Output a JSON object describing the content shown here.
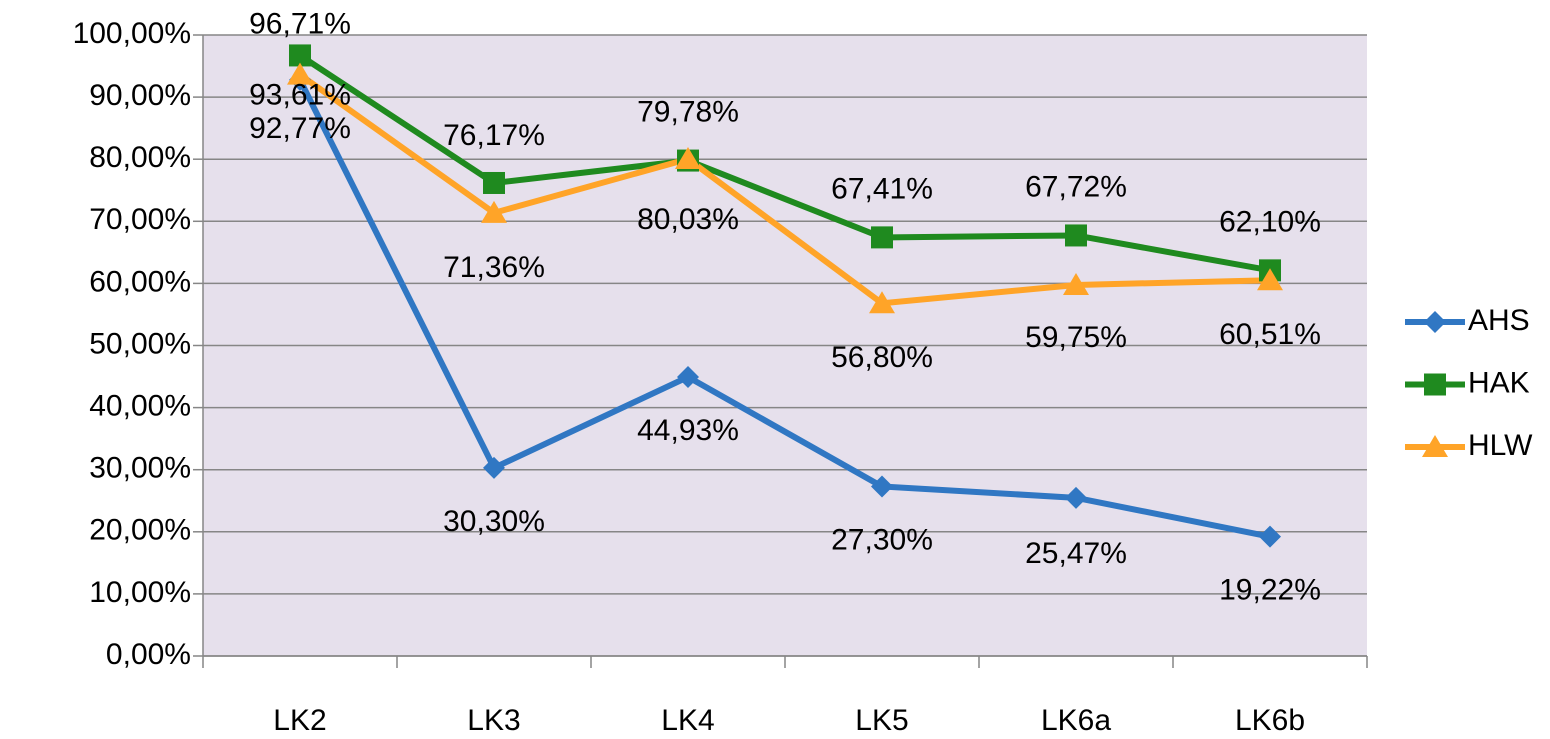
{
  "chart_data": {
    "type": "line",
    "categories": [
      "LK2",
      "LK3",
      "LK4",
      "LK5",
      "LK6a",
      "LK6b"
    ],
    "series": [
      {
        "name": "AHS",
        "color": "#3077c3",
        "marker": "diamond",
        "values": [
          92.77,
          30.3,
          44.93,
          27.3,
          25.47,
          19.22
        ],
        "value_labels": [
          "92,77%",
          "30,30%",
          "44,93%",
          "27,30%",
          "25,47%",
          "19,22%"
        ]
      },
      {
        "name": "HAK",
        "color": "#1f8a1f",
        "marker": "square",
        "values": [
          96.71,
          76.17,
          79.78,
          67.41,
          67.72,
          62.1
        ],
        "value_labels": [
          "96,71%",
          "76,17%",
          "79,78%",
          "67,41%",
          "67,72%",
          "62,10%"
        ]
      },
      {
        "name": "HLW",
        "color": "#ffa428",
        "marker": "triangle",
        "values": [
          93.61,
          71.36,
          80.03,
          56.8,
          59.75,
          60.51
        ],
        "value_labels": [
          "93,61%",
          "71,36%",
          "80,03%",
          "56,80%",
          "59,75%",
          "60,51%"
        ]
      }
    ],
    "ylim": [
      0,
      100
    ],
    "yticks": [
      {
        "value": 0,
        "label": "0,00%"
      },
      {
        "value": 10,
        "label": "10,00%"
      },
      {
        "value": 20,
        "label": "20,00%"
      },
      {
        "value": 30,
        "label": "30,00%"
      },
      {
        "value": 40,
        "label": "40,00%"
      },
      {
        "value": 50,
        "label": "50,00%"
      },
      {
        "value": 60,
        "label": "60,00%"
      },
      {
        "value": 70,
        "label": "70,00%"
      },
      {
        "value": 80,
        "label": "80,00%"
      },
      {
        "value": 90,
        "label": "90,00%"
      },
      {
        "value": 100,
        "label": "100,00%"
      }
    ],
    "grid": true,
    "legend": "right",
    "plot_background": "#e6e0ec"
  }
}
